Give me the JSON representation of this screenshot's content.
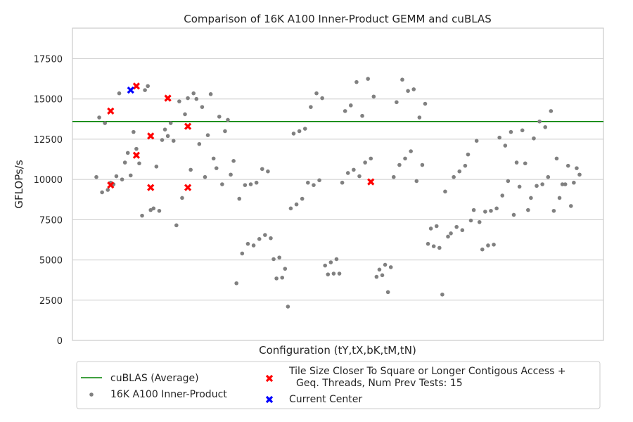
{
  "chart_data": {
    "type": "scatter",
    "title": "Comparison of 16K A100 Inner-Product GEMM and cuBLAS",
    "xlabel": "Configuration (tY,tX,bK,tM,tN)",
    "ylabel": "GFLOPs/s",
    "ylim": [
      0,
      19400
    ],
    "yticks": [
      0,
      2500,
      5000,
      7500,
      10000,
      12500,
      15000,
      17500
    ],
    "grid": "horizontal",
    "legend_position": "bottom",
    "reference_line": {
      "name": "cuBLAS (Average)",
      "value": 13600,
      "color": "#008000"
    },
    "series": [
      {
        "name": "16K A100 Inner-Product",
        "color": "#808080",
        "marker": "dot",
        "values": [
          10150,
          13850,
          9200,
          13500,
          9350,
          9800,
          9700,
          10200,
          15350,
          10000,
          11050,
          11650,
          10250,
          12950,
          11900,
          11000,
          7750,
          15550,
          15800,
          8100,
          8200,
          10800,
          8050,
          12450,
          13100,
          12700,
          13500,
          12400,
          7150,
          14850,
          8850,
          14050,
          15050,
          10600,
          15350,
          15000,
          12200,
          14500,
          10150,
          12750,
          15300,
          11300,
          10700,
          13900,
          9700,
          13000,
          13700,
          10300,
          11150,
          3550,
          8800,
          5400,
          9650,
          6000,
          9700,
          5900,
          9800,
          6300,
          10650,
          6550,
          10500,
          6350,
          5050,
          3850,
          5150,
          3900,
          4450,
          2100,
          8200,
          12850,
          8450,
          13000,
          8800,
          13150,
          9800,
          14500,
          9650,
          15350,
          9950,
          15050,
          4650,
          4100,
          4850,
          4150,
          5050,
          4150,
          9800,
          14250,
          10400,
          14600,
          10600,
          16050,
          10200,
          13950,
          11050,
          16250,
          11300,
          15150,
          3950,
          4400,
          4050,
          4700,
          3000,
          4550,
          10150,
          14800,
          10900,
          16200,
          11300,
          15500,
          11750,
          15600,
          9900,
          13850,
          10900,
          14700,
          6000,
          6950,
          5850,
          7100,
          5750,
          2850,
          9250,
          6450,
          6650,
          10150,
          7050,
          10500,
          6850,
          10850,
          11550,
          7450,
          8100,
          12400,
          7350,
          5650,
          8000,
          5900,
          8050,
          5950,
          8200,
          12600,
          9000,
          12100,
          9900,
          12950,
          7800,
          11050,
          9550,
          13050,
          11000,
          8100,
          8850,
          12550,
          9600,
          13600,
          9700,
          13250,
          10150,
          14250,
          8050,
          11300,
          8850,
          9700,
          9700,
          10850,
          8350,
          9800,
          10700,
          10300
        ]
      },
      {
        "name": "Tile Size Closer To Square or Longer Contigous Access + Geq. Threads, Num Prev Tests: 15",
        "name_lines": [
          "Tile Size Closer To Square or Longer Contigous Access +",
          "Geq. Threads, Num Prev Tests: 15"
        ],
        "color": "#ff0000",
        "marker": "x",
        "points": [
          [
            5,
            14250
          ],
          [
            5,
            9650
          ],
          [
            14,
            15800
          ],
          [
            14,
            11500
          ],
          [
            19,
            12700
          ],
          [
            19,
            9500
          ],
          [
            25,
            15050
          ],
          [
            32,
            13300
          ],
          [
            32,
            9500
          ],
          [
            96,
            9850
          ]
        ]
      },
      {
        "name": "Current Center",
        "color": "#0000ff",
        "marker": "x",
        "points": [
          [
            12,
            15550
          ]
        ]
      }
    ]
  }
}
